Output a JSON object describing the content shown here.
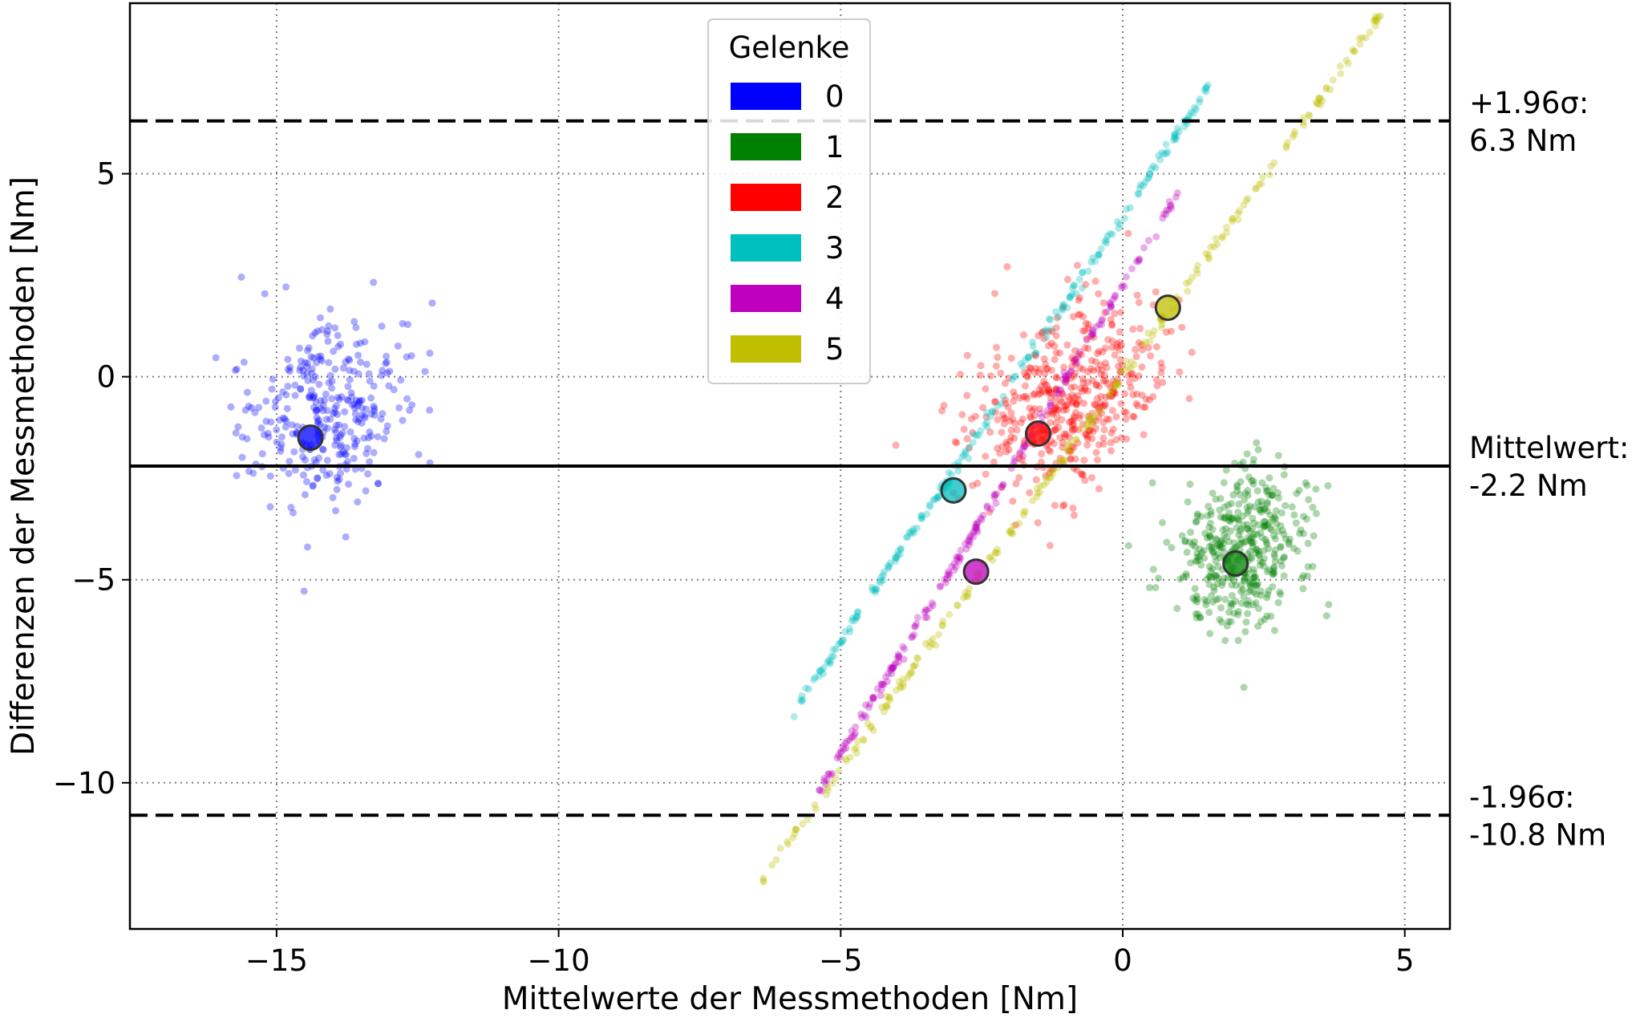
{
  "chart_data": {
    "type": "scatter",
    "title": "",
    "xlabel": "Mittelwerte der Messmethoden [Nm]",
    "ylabel": "Differenzen der Messmethoden [Nm]",
    "xlim": [
      -17.6,
      5.8
    ],
    "ylim": [
      -13.6,
      9.2
    ],
    "xticks": [
      -15,
      -10,
      -5,
      0,
      5
    ],
    "yticks": [
      -10,
      -5,
      0,
      5
    ],
    "xtick_labels": [
      "−15",
      "−10",
      "−5",
      "0",
      "5"
    ],
    "ytick_labels": [
      "−10",
      "−5",
      "0",
      "5"
    ],
    "grid": true,
    "legend": {
      "title": "Gelenke",
      "position": "top-center",
      "entries": [
        {
          "label": "0",
          "color": "#0000ff"
        },
        {
          "label": "1",
          "color": "#008000"
        },
        {
          "label": "2",
          "color": "#ff0000"
        },
        {
          "label": "3",
          "color": "#00bfbf"
        },
        {
          "label": "4",
          "color": "#bf00bf"
        },
        {
          "label": "5",
          "color": "#bfbf00"
        }
      ]
    },
    "mean_points": [
      {
        "joint": "0",
        "x": -14.4,
        "y": -1.5
      },
      {
        "joint": "1",
        "x": 2.0,
        "y": -4.6
      },
      {
        "joint": "2",
        "x": -1.5,
        "y": -1.4
      },
      {
        "joint": "3",
        "x": -3.0,
        "y": -2.8
      },
      {
        "joint": "4",
        "x": -2.6,
        "y": -4.8
      },
      {
        "joint": "5",
        "x": 0.8,
        "y": 1.7
      }
    ],
    "clusters": [
      {
        "joint": "0",
        "kind": "blob",
        "center": [
          -14.1,
          -0.9
        ],
        "spread": [
          1.3,
          2.0
        ],
        "x_range": [
          -16.6,
          -11.8
        ],
        "count": 330
      },
      {
        "joint": "1",
        "kind": "blob",
        "center": [
          2.1,
          -4.2
        ],
        "spread": [
          1.1,
          1.7
        ],
        "x_range": [
          -0.3,
          4.5
        ],
        "count": 430
      },
      {
        "joint": "2",
        "kind": "blob",
        "center": [
          -1.0,
          -0.6
        ],
        "spread": [
          1.5,
          2.0
        ],
        "x_range": [
          -4.7,
          1.3
        ],
        "count": 480
      },
      {
        "joint": "3",
        "kind": "line",
        "x_range": [
          -5.9,
          1.6
        ],
        "y_at_start": -8.4,
        "y_at_end": 7.3,
        "count": 230
      },
      {
        "joint": "4",
        "kind": "line",
        "x_range": [
          -5.4,
          1.0
        ],
        "y_at_start": -10.2,
        "y_at_end": 4.6,
        "count": 220
      },
      {
        "joint": "5",
        "kind": "line",
        "x_range": [
          -6.4,
          4.7
        ],
        "y_at_start": -12.4,
        "y_at_end": 9.2,
        "count": 260
      }
    ],
    "reference_lines": [
      {
        "name": "mean",
        "y": -2.2,
        "style": "solid",
        "label_line1": "Mittelwert:",
        "label_line2": "-2.2 Nm"
      },
      {
        "name": "upper",
        "y": 6.3,
        "style": "dashed",
        "label_line1": "+1.96σ:",
        "label_line2": "6.3 Nm"
      },
      {
        "name": "lower",
        "y": -10.8,
        "style": "dashed",
        "label_line1": "-1.96σ:",
        "label_line2": "-10.8 Nm"
      }
    ]
  }
}
